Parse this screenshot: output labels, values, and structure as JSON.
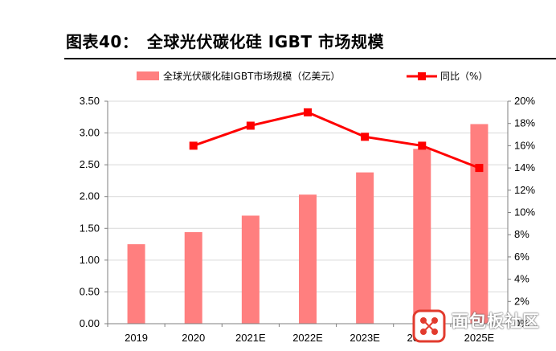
{
  "title": "图表40：　全球光伏碳化硅 IGBT 市场规模",
  "chart_data": {
    "type": "bar",
    "categories": [
      "2019",
      "2020",
      "2021E",
      "2022E",
      "2023E",
      "2024E",
      "2025E"
    ],
    "series": [
      {
        "name": "全球光伏碳化硅IGBT市场规模（亿美元）",
        "type": "bar",
        "axis": "left",
        "values": [
          1.25,
          1.44,
          1.7,
          2.03,
          2.38,
          2.75,
          3.14
        ]
      },
      {
        "name": "同比（%）",
        "type": "line",
        "axis": "right",
        "values": [
          null,
          16,
          17.8,
          19,
          16.8,
          16,
          14
        ]
      }
    ],
    "y_left": {
      "min": 0,
      "max": 3.5,
      "step": 0.5,
      "ticks": [
        "0.00",
        "0.50",
        "1.00",
        "1.50",
        "2.00",
        "2.50",
        "3.00",
        "3.50"
      ]
    },
    "y_right": {
      "min": 0,
      "max": 20,
      "step": 2,
      "ticks": [
        "0%",
        "2%",
        "4%",
        "6%",
        "8%",
        "10%",
        "12%",
        "14%",
        "16%",
        "18%",
        "20%"
      ]
    },
    "legend_position": "top",
    "grid": true,
    "colors": {
      "bar": "#ff7f7f",
      "line": "#ff0000",
      "grid": "#d9d9d9",
      "axis": "#7f7f7f"
    }
  },
  "watermark": {
    "text": "面包板社区",
    "sub": "www.eet-china.com"
  }
}
